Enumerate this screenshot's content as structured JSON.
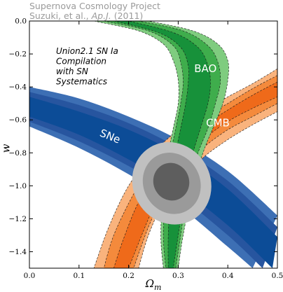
{
  "credit": {
    "line1": "Supernova Cosmology Project",
    "line2_authors": "Suzuki, et al., ",
    "line2_journal": "Ap.J.",
    "line2_year": " (2011)"
  },
  "annotation": {
    "lines": [
      "Union2.1 SN Ia",
      "Compilation",
      "with SN",
      "Systematics"
    ]
  },
  "colors": {
    "sne": [
      "#3d6fb4",
      "#27559f",
      "#0c4c97"
    ],
    "cmb": [
      "#f9b37d",
      "#f48a3c",
      "#ef6a1a"
    ],
    "bao": [
      "#7fcc7f",
      "#3fad4c",
      "#17913a"
    ],
    "combined": [
      "#c0c0c0",
      "#9a9a9a",
      "#5e5e5e"
    ]
  },
  "chart_data": {
    "type": "contour",
    "xlabel": "Ω",
    "xlabel_sub": "m",
    "ylabel": "w",
    "xlim": [
      0.0,
      0.5
    ],
    "ylim": [
      -1.5,
      0.0
    ],
    "xticks": [
      0.0,
      0.1,
      0.2,
      0.3,
      0.4,
      0.5
    ],
    "xtick_labels": [
      "0.0",
      "0.1",
      "0.2",
      "0.3",
      "0.4",
      "0.5"
    ],
    "yticks": [
      0.0,
      -0.2,
      -0.4,
      -0.6,
      -0.8,
      -1.0,
      -1.2,
      -1.4
    ],
    "ytick_labels": [
      "0.0",
      "−0.2",
      "−0.4",
      "−0.6",
      "−0.8",
      "−1.0",
      "−1.2",
      "−1.4"
    ],
    "confidence_regions": [
      {
        "name": "SNe",
        "levels": [
          {
            "upper": [
              [
                0.0,
                -0.4
              ],
              [
                0.1,
                -0.47
              ],
              [
                0.2,
                -0.58
              ],
              [
                0.3,
                -0.72
              ],
              [
                0.4,
                -0.91
              ],
              [
                0.5,
                -1.18
              ]
            ],
            "lower": [
              [
                0.0,
                -0.64
              ],
              [
                0.1,
                -0.77
              ],
              [
                0.2,
                -0.93
              ],
              [
                0.3,
                -1.12
              ],
              [
                0.4,
                -1.37
              ],
              [
                0.45,
                -1.5
              ]
            ]
          },
          {
            "upper": [
              [
                0.0,
                -0.43
              ],
              [
                0.1,
                -0.51
              ],
              [
                0.2,
                -0.62
              ],
              [
                0.3,
                -0.77
              ],
              [
                0.4,
                -0.97
              ],
              [
                0.5,
                -1.25
              ]
            ],
            "lower": [
              [
                0.0,
                -0.61
              ],
              [
                0.1,
                -0.73
              ],
              [
                0.2,
                -0.88
              ],
              [
                0.3,
                -1.06
              ],
              [
                0.4,
                -1.3
              ],
              [
                0.47,
                -1.5
              ]
            ]
          },
          {
            "upper": [
              [
                0.0,
                -0.46
              ],
              [
                0.1,
                -0.55
              ],
              [
                0.2,
                -0.66
              ],
              [
                0.3,
                -0.81
              ],
              [
                0.4,
                -1.02
              ],
              [
                0.5,
                -1.31
              ]
            ],
            "lower": [
              [
                0.0,
                -0.58
              ],
              [
                0.1,
                -0.69
              ],
              [
                0.2,
                -0.84
              ],
              [
                0.3,
                -1.01
              ],
              [
                0.4,
                -1.24
              ],
              [
                0.49,
                -1.5
              ]
            ]
          }
        ],
        "label": "SNe",
        "label_at": [
          0.16,
          -0.72
        ]
      },
      {
        "name": "CMB",
        "levels": [
          {
            "upper": [
              [
                0.5,
                -0.29
              ],
              [
                0.45,
                -0.38
              ],
              [
                0.4,
                -0.46
              ],
              [
                0.35,
                -0.55
              ],
              [
                0.3,
                -0.66
              ],
              [
                0.25,
                -0.8
              ],
              [
                0.2,
                -1.0
              ],
              [
                0.16,
                -1.25
              ],
              [
                0.13,
                -1.5
              ]
            ],
            "lower": [
              [
                0.5,
                -0.55
              ],
              [
                0.45,
                -0.63
              ],
              [
                0.4,
                -0.72
              ],
              [
                0.35,
                -0.83
              ],
              [
                0.3,
                -0.98
              ],
              [
                0.27,
                -1.1
              ],
              [
                0.24,
                -1.3
              ],
              [
                0.22,
                -1.5
              ]
            ]
          },
          {
            "upper": [
              [
                0.5,
                -0.33
              ],
              [
                0.45,
                -0.41
              ],
              [
                0.4,
                -0.5
              ],
              [
                0.35,
                -0.59
              ],
              [
                0.3,
                -0.71
              ],
              [
                0.25,
                -0.86
              ],
              [
                0.21,
                -1.05
              ],
              [
                0.17,
                -1.3
              ],
              [
                0.15,
                -1.5
              ]
            ],
            "lower": [
              [
                0.5,
                -0.5
              ],
              [
                0.45,
                -0.58
              ],
              [
                0.4,
                -0.66
              ],
              [
                0.35,
                -0.77
              ],
              [
                0.3,
                -0.92
              ],
              [
                0.27,
                -1.06
              ],
              [
                0.24,
                -1.25
              ],
              [
                0.21,
                -1.5
              ]
            ]
          },
          {
            "upper": [
              [
                0.5,
                -0.37
              ],
              [
                0.45,
                -0.45
              ],
              [
                0.4,
                -0.54
              ],
              [
                0.35,
                -0.64
              ],
              [
                0.3,
                -0.77
              ],
              [
                0.26,
                -0.92
              ],
              [
                0.22,
                -1.1
              ],
              [
                0.19,
                -1.32
              ],
              [
                0.17,
                -1.5
              ]
            ],
            "lower": [
              [
                0.5,
                -0.46
              ],
              [
                0.45,
                -0.53
              ],
              [
                0.4,
                -0.61
              ],
              [
                0.35,
                -0.72
              ],
              [
                0.3,
                -0.86
              ],
              [
                0.27,
                -1.01
              ],
              [
                0.24,
                -1.2
              ],
              [
                0.2,
                -1.5
              ]
            ]
          }
        ],
        "label": "CMB",
        "label_at": [
          0.38,
          -0.64
        ]
      },
      {
        "name": "BAO",
        "levels": [
          {
            "upper": [
              [
                0.13,
                0.0
              ],
              [
                0.22,
                -0.06
              ],
              [
                0.27,
                -0.14
              ],
              [
                0.29,
                -0.24
              ],
              [
                0.3,
                -0.36
              ],
              [
                0.3,
                -0.5
              ],
              [
                0.29,
                -0.65
              ],
              [
                0.28,
                -0.8
              ],
              [
                0.27,
                -1.0
              ],
              [
                0.265,
                -1.3
              ],
              [
                0.27,
                -1.5
              ]
            ],
            "lower": [
              [
                0.24,
                0.0
              ],
              [
                0.33,
                -0.06
              ],
              [
                0.38,
                -0.14
              ],
              [
                0.4,
                -0.24
              ],
              [
                0.4,
                -0.36
              ],
              [
                0.39,
                -0.5
              ],
              [
                0.37,
                -0.65
              ],
              [
                0.35,
                -0.8
              ],
              [
                0.33,
                -1.0
              ],
              [
                0.31,
                -1.3
              ],
              [
                0.3,
                -1.5
              ]
            ]
          },
          {
            "upper": [
              [
                0.15,
                0.0
              ],
              [
                0.24,
                -0.06
              ],
              [
                0.29,
                -0.15
              ],
              [
                0.305,
                -0.25
              ],
              [
                0.31,
                -0.37
              ],
              [
                0.305,
                -0.5
              ],
              [
                0.295,
                -0.65
              ],
              [
                0.285,
                -0.8
              ],
              [
                0.275,
                -1.0
              ],
              [
                0.27,
                -1.3
              ],
              [
                0.275,
                -1.5
              ]
            ],
            "lower": [
              [
                0.22,
                0.0
              ],
              [
                0.31,
                -0.06
              ],
              [
                0.36,
                -0.15
              ],
              [
                0.38,
                -0.25
              ],
              [
                0.385,
                -0.37
              ],
              [
                0.375,
                -0.5
              ],
              [
                0.36,
                -0.65
              ],
              [
                0.34,
                -0.8
              ],
              [
                0.32,
                -1.0
              ],
              [
                0.305,
                -1.3
              ],
              [
                0.295,
                -1.5
              ]
            ]
          },
          {
            "upper": [
              [
                0.17,
                0.0
              ],
              [
                0.26,
                -0.07
              ],
              [
                0.305,
                -0.16
              ],
              [
                0.32,
                -0.27
              ],
              [
                0.32,
                -0.38
              ],
              [
                0.315,
                -0.5
              ],
              [
                0.305,
                -0.65
              ],
              [
                0.295,
                -0.8
              ],
              [
                0.285,
                -1.0
              ],
              [
                0.28,
                -1.3
              ],
              [
                0.28,
                -1.5
              ]
            ],
            "lower": [
              [
                0.2,
                0.0
              ],
              [
                0.29,
                -0.07
              ],
              [
                0.34,
                -0.16
              ],
              [
                0.36,
                -0.27
              ],
              [
                0.365,
                -0.38
              ],
              [
                0.36,
                -0.5
              ],
              [
                0.345,
                -0.65
              ],
              [
                0.33,
                -0.8
              ],
              [
                0.315,
                -1.0
              ],
              [
                0.3,
                -1.3
              ],
              [
                0.29,
                -1.5
              ]
            ]
          }
        ],
        "label": "BAO",
        "label_at": [
          0.355,
          -0.31
        ]
      }
    ],
    "combined_ellipses": [
      {
        "cx": 0.287,
        "cy": -0.985,
        "rx": 0.078,
        "ry": 0.255,
        "angle_deg": -31
      },
      {
        "cx": 0.287,
        "cy": -0.985,
        "rx": 0.057,
        "ry": 0.19,
        "angle_deg": -28
      },
      {
        "cx": 0.286,
        "cy": -0.975,
        "rx": 0.036,
        "ry": 0.115,
        "angle_deg": -22
      }
    ]
  }
}
